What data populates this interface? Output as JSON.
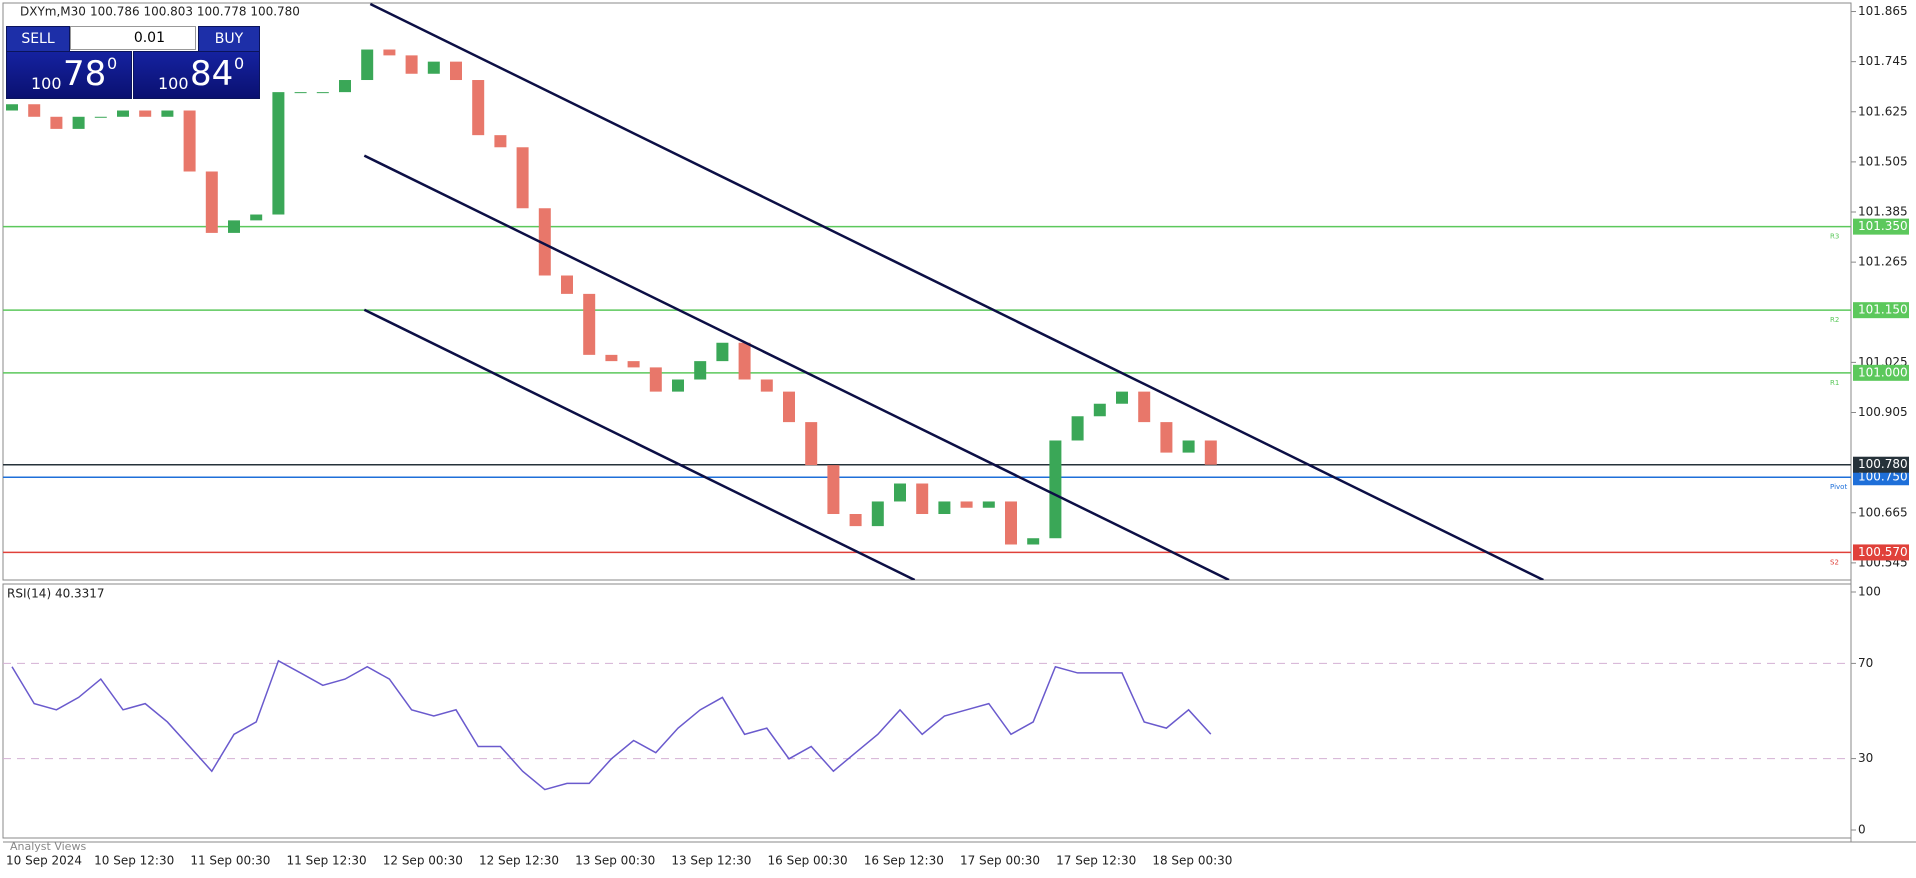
{
  "header": {
    "symbol": "DXYm,M30",
    "ohlc": "100.786 100.803 100.778 100.780"
  },
  "trade_panel": {
    "sell": "SELL",
    "buy": "BUY",
    "lot": "0.01",
    "sell_price": {
      "big": "100",
      "main": "78",
      "small": "0"
    },
    "buy_price": {
      "big": "100",
      "main": "84",
      "small": "0"
    }
  },
  "chart_data": {
    "type": "candlestick",
    "open": 101.628,
    "close": [
      101.643,
      101.613,
      101.584,
      101.613,
      101.613,
      101.628,
      101.613,
      101.628,
      101.482,
      101.335,
      101.365,
      101.379,
      101.672,
      101.672,
      101.672,
      101.701,
      101.774,
      101.76,
      101.716,
      101.745,
      101.701,
      101.569,
      101.54,
      101.394,
      101.233,
      101.189,
      101.043,
      101.028,
      101.013,
      100.955,
      100.984,
      101.028,
      101.072,
      100.984,
      100.955,
      100.882,
      100.779,
      100.662,
      100.633,
      100.692,
      100.735,
      100.662,
      100.692,
      100.677,
      100.692,
      100.589,
      100.604,
      100.838,
      100.896,
      100.926,
      100.955,
      100.882,
      100.809,
      100.838,
      100.78
    ],
    "up_color": "#3aa757",
    "down_color": "#e8776a",
    "ylim": [
      100.504,
      101.883
    ],
    "yticks": [
      101.865,
      101.745,
      101.625,
      101.505,
      101.385,
      101.265,
      101.025,
      100.905,
      100.665,
      100.545
    ],
    "levels": [
      {
        "name": "R3",
        "value": 101.35,
        "label": "101.350",
        "color": "#5cc85c"
      },
      {
        "name": "R2",
        "value": 101.15,
        "label": "101.150",
        "color": "#5cc85c"
      },
      {
        "name": "R1",
        "value": 101,
        "label": "101.000",
        "color": "#5cc85c"
      },
      {
        "name": "Pivot",
        "value": 100.75,
        "label": "100.750",
        "color": "#1e6fd9"
      },
      {
        "name": "S2",
        "value": 100.57,
        "label": "100.570",
        "color": "#e0413a"
      }
    ],
    "current": {
      "value": 100.78,
      "label": "100.780",
      "color": "#26323a"
    },
    "channels": [
      {
        "x": [
          16.14,
          68.98
        ],
        "y": [
          101.883,
          100.504
        ]
      },
      {
        "x": [
          15.87,
          54.82
        ],
        "y": [
          101.52,
          100.504
        ]
      },
      {
        "x": [
          15.87,
          40.66
        ],
        "y": [
          101.151,
          100.504
        ]
      }
    ],
    "x_labels": [
      "10 Sep 2024",
      "10 Sep 12:30",
      "11 Sep 00:30",
      "11 Sep 12:30",
      "12 Sep 00:30",
      "12 Sep 12:30",
      "13 Sep 00:30",
      "13 Sep 12:30",
      "16 Sep 00:30",
      "16 Sep 12:30",
      "17 Sep 00:30",
      "17 Sep 12:30",
      "18 Sep 00:30"
    ],
    "indicator": {
      "title": "RSI(14) 40.3317",
      "color": "#6a5acd",
      "values": [
        68.6,
        53.1,
        50.5,
        55.7,
        63.4,
        50.5,
        53.1,
        45.4,
        35.1,
        24.7,
        40.2,
        45.4,
        71.1,
        66.0,
        60.8,
        63.4,
        68.6,
        63.4,
        50.5,
        47.9,
        50.5,
        35.1,
        35.1,
        24.7,
        17.0,
        19.6,
        19.6,
        29.9,
        37.6,
        32.5,
        42.8,
        50.5,
        55.7,
        40.2,
        42.8,
        29.9,
        35.1,
        24.7,
        32.5,
        40.2,
        50.5,
        40.2,
        47.9,
        50.5,
        53.1,
        40.2,
        45.4,
        68.6,
        66.0,
        66.0,
        66.0,
        45.4,
        42.8,
        50.5,
        40.3
      ],
      "ylim": [
        0,
        100
      ],
      "yticks": [
        100,
        70,
        30,
        0
      ],
      "levels": [
        70,
        30
      ]
    }
  },
  "footer": "Analyst Views"
}
